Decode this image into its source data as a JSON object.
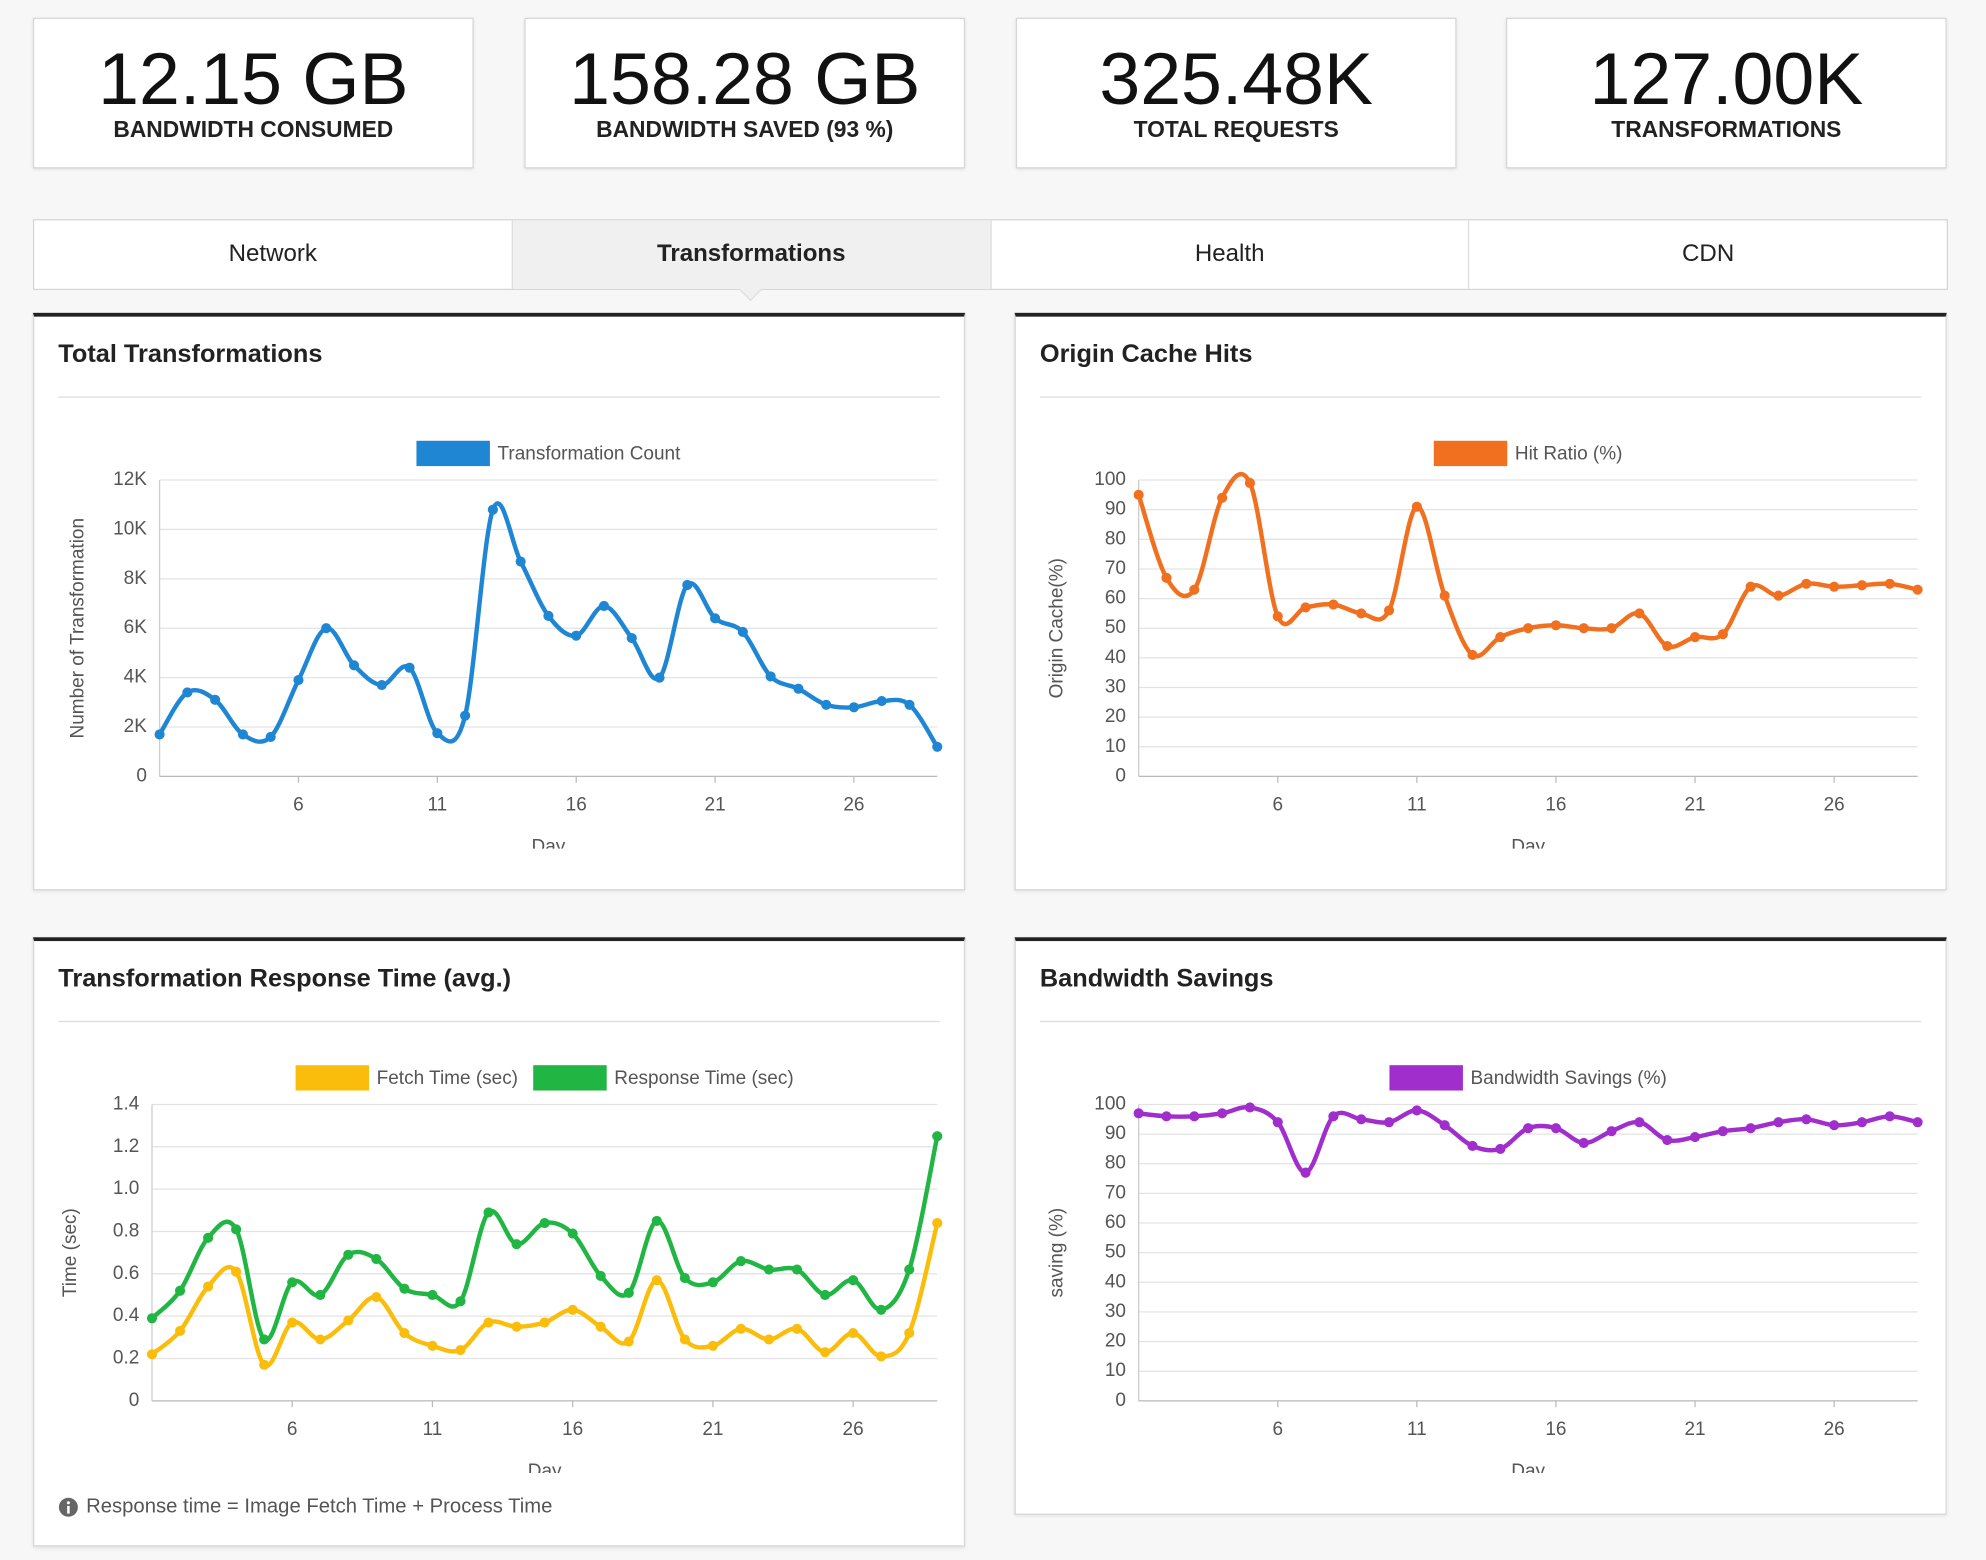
{
  "stats": [
    {
      "value": "12.15 GB",
      "label": "BANDWIDTH CONSUMED"
    },
    {
      "value": "158.28 GB",
      "label": "BANDWIDTH SAVED (93 %)"
    },
    {
      "value": "325.48K",
      "label": "TOTAL REQUESTS"
    },
    {
      "value": "127.00K",
      "label": "TRANSFORMATIONS"
    }
  ],
  "tabs": [
    "Network",
    "Transformations",
    "Health",
    "CDN"
  ],
  "active_tab": 1,
  "chart_data": [
    {
      "type": "line",
      "title": "Total Transformations",
      "x_label": "Day",
      "y_label": "Number of Transformation",
      "x": [
        1,
        2,
        3,
        4,
        5,
        6,
        7,
        8,
        9,
        10,
        11,
        12,
        13,
        14,
        15,
        16,
        17,
        18,
        19,
        20,
        21,
        22,
        23,
        24,
        25,
        26,
        27,
        28,
        29
      ],
      "xlim": [
        1,
        29
      ],
      "xticks": [
        6,
        11,
        16,
        21,
        26
      ],
      "ylim": [
        0,
        12000
      ],
      "yticks": [
        0,
        {
          "value": 2000,
          "label": "2K"
        },
        {
          "value": 4000,
          "label": "4K"
        },
        {
          "value": 6000,
          "label": "6K"
        },
        {
          "value": 8000,
          "label": "8K"
        },
        {
          "value": 10000,
          "label": "10K"
        },
        {
          "value": 12000,
          "label": "12K"
        }
      ],
      "grid": true,
      "series": [
        {
          "name": "Transformation Count",
          "color": "#1f86d4",
          "values": [
            1700,
            3400,
            3100,
            1700,
            1600,
            3900,
            6000,
            4500,
            3700,
            4400,
            1750,
            2460,
            10800,
            8700,
            6500,
            5700,
            6900,
            5600,
            4000,
            7750,
            6400,
            5850,
            4050,
            3550,
            2900,
            2800,
            3050,
            2900,
            1200
          ]
        }
      ]
    },
    {
      "type": "line",
      "title": "Origin Cache Hits",
      "x_label": "Day",
      "y_label": "Origin Cache(%)",
      "x": [
        1,
        2,
        3,
        4,
        5,
        6,
        7,
        8,
        9,
        10,
        11,
        12,
        13,
        14,
        15,
        16,
        17,
        18,
        19,
        20,
        21,
        22,
        23,
        24,
        25,
        26,
        27,
        28,
        29
      ],
      "xlim": [
        1,
        29
      ],
      "xticks": [
        6,
        11,
        16,
        21,
        26
      ],
      "ylim": [
        0,
        100
      ],
      "yticks": [
        0,
        10,
        20,
        30,
        40,
        50,
        60,
        70,
        80,
        90,
        100
      ],
      "grid": true,
      "series": [
        {
          "name": "Hit Ratio (%)",
          "color": "#f07020",
          "values": [
            95,
            67,
            63,
            94,
            99,
            54,
            57,
            58,
            55,
            56,
            91,
            61,
            41,
            47,
            50,
            51,
            50,
            50,
            55,
            44,
            47,
            48,
            64,
            61,
            65,
            64,
            64.5,
            65,
            63
          ]
        }
      ]
    },
    {
      "type": "line",
      "title": "Transformation Response Time (avg.)",
      "x_label": "Day",
      "y_label": "Time (sec)",
      "x": [
        1,
        2,
        3,
        4,
        5,
        6,
        7,
        8,
        9,
        10,
        11,
        12,
        13,
        14,
        15,
        16,
        17,
        18,
        19,
        20,
        21,
        22,
        23,
        24,
        25,
        26,
        27,
        28,
        29
      ],
      "xlim": [
        1,
        29
      ],
      "xticks": [
        6,
        11,
        16,
        21,
        26
      ],
      "ylim": [
        0,
        1.4
      ],
      "yticks": [
        0,
        0.2,
        0.4,
        0.6,
        0.8,
        {
          "value": 1,
          "label": "1.0"
        },
        1.2,
        1.4
      ],
      "grid": true,
      "series": [
        {
          "name": "Fetch Time (sec)",
          "color": "#fbbd0c",
          "values": [
            0.22,
            0.33,
            0.54,
            0.61,
            0.17,
            0.37,
            0.29,
            0.38,
            0.49,
            0.32,
            0.26,
            0.24,
            0.37,
            0.35,
            0.37,
            0.43,
            0.35,
            0.28,
            0.57,
            0.29,
            0.26,
            0.34,
            0.29,
            0.34,
            0.23,
            0.32,
            0.21,
            0.32,
            0.84
          ]
        },
        {
          "name": "Response Time (sec)",
          "color": "#21b544",
          "values": [
            0.39,
            0.52,
            0.77,
            0.81,
            0.29,
            0.56,
            0.5,
            0.69,
            0.67,
            0.53,
            0.5,
            0.47,
            0.89,
            0.74,
            0.84,
            0.79,
            0.59,
            0.51,
            0.85,
            0.58,
            0.56,
            0.66,
            0.62,
            0.62,
            0.5,
            0.57,
            0.43,
            0.62,
            1.25
          ]
        }
      ]
    },
    {
      "type": "line",
      "title": "Bandwidth Savings",
      "x_label": "Day",
      "y_label": "saving (%)",
      "x": [
        1,
        2,
        3,
        4,
        5,
        6,
        7,
        8,
        9,
        10,
        11,
        12,
        13,
        14,
        15,
        16,
        17,
        18,
        19,
        20,
        21,
        22,
        23,
        24,
        25,
        26,
        27,
        28,
        29
      ],
      "xlim": [
        1,
        29
      ],
      "xticks": [
        6,
        11,
        16,
        21,
        26
      ],
      "ylim": [
        0,
        100
      ],
      "yticks": [
        0,
        10,
        20,
        30,
        40,
        50,
        60,
        70,
        80,
        90,
        100
      ],
      "grid": true,
      "series": [
        {
          "name": "Bandwidth Savings (%)",
          "color": "#a02ecc",
          "values": [
            97,
            96,
            96,
            97,
            99,
            94,
            77,
            96,
            95,
            94,
            98,
            93,
            86,
            85,
            92,
            92,
            87,
            91,
            94,
            88,
            89,
            91,
            92,
            94,
            95,
            93,
            94,
            96,
            94
          ]
        }
      ]
    }
  ],
  "footnote": "Response time = Image Fetch Time + Process Time"
}
